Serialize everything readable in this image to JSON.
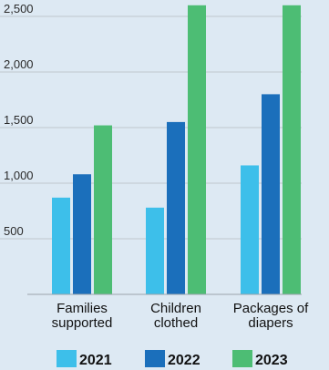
{
  "chart_data": {
    "type": "bar",
    "categories": [
      [
        "Families",
        "supported"
      ],
      [
        "Children",
        "clothed"
      ],
      [
        "Packages of",
        "diapers"
      ]
    ],
    "series": [
      {
        "name": "2021",
        "color": "#3dbfea",
        "values": [
          870,
          780,
          1160
        ]
      },
      {
        "name": "2022",
        "color": "#1b6fbb",
        "values": [
          1080,
          1550,
          1800
        ]
      },
      {
        "name": "2023",
        "color": "#4dbd74",
        "values": [
          1520,
          2600,
          2600
        ]
      }
    ],
    "y_ticks": [
      500,
      1000,
      1500,
      2000,
      2500
    ],
    "y_tick_labels": [
      "500",
      "1,000",
      "1,500",
      "2,000",
      "2,500"
    ],
    "ylim": [
      0,
      2600
    ],
    "grid": true,
    "legend_position": "bottom",
    "title": "",
    "xlabel": "",
    "ylabel": ""
  }
}
